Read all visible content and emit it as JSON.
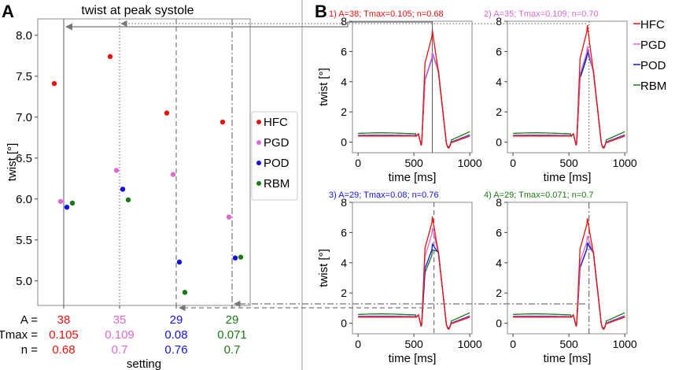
{
  "panel_labels": {
    "a": "A",
    "b": "B"
  },
  "colors": {
    "HFC": "#e8120f",
    "PGD": "#de69d4",
    "POD": "#1212e0",
    "RBM": "#1b7a14"
  },
  "chart_data": [
    {
      "id": "A",
      "type": "scatter",
      "title": "twist at peak systole",
      "xlabel": "setting",
      "ylabel": "twist [°]",
      "ylim": [
        4.7,
        8.2
      ],
      "yticks": [
        "5.0",
        "5.5",
        "6.0",
        "6.5",
        "7.0",
        "7.5",
        "8.0"
      ],
      "row_labels": [
        "A =",
        "Tmax =",
        "n ="
      ],
      "settings": [
        {
          "A": "38",
          "Tmax": "0.105",
          "n": "0.68",
          "line": "solid",
          "color": "#e8120f"
        },
        {
          "A": "35",
          "Tmax": "0.109",
          "n": "0.7",
          "line": "dotted",
          "color": "#de69d4"
        },
        {
          "A": "29",
          "Tmax": "0.08",
          "n": "0.76",
          "line": "dashed",
          "color": "#1212e0"
        },
        {
          "A": "29",
          "Tmax": "0.071",
          "n": "0.7",
          "line": "dashdot",
          "color": "#1b7a14"
        }
      ],
      "legend": [
        "HFC",
        "PGD",
        "POD",
        "RBM"
      ],
      "series": [
        {
          "name": "HFC",
          "values": [
            7.41,
            7.74,
            7.05,
            6.94
          ]
        },
        {
          "name": "PGD",
          "values": [
            5.97,
            6.35,
            6.3,
            5.78
          ]
        },
        {
          "name": "POD",
          "values": [
            5.9,
            6.12,
            5.23,
            5.28
          ]
        },
        {
          "name": "RBM",
          "values": [
            5.95,
            5.99,
            4.86,
            5.29
          ]
        }
      ]
    },
    {
      "id": "B",
      "type": "line",
      "xlabel": "time [ms]",
      "ylabel": "twist [°]",
      "xlim": [
        -50,
        1020
      ],
      "ylim": [
        -0.7,
        8
      ],
      "xticks": [
        "0",
        "500",
        "1000"
      ],
      "yticks": [
        "0",
        "2",
        "4",
        "6",
        "8"
      ],
      "legend": [
        "HFC",
        "PGD",
        "POD",
        "RBM"
      ],
      "subplots": [
        {
          "title": "1) A=38; Tmax=0.105; n=0.68",
          "title_color": "#e8120f",
          "marker_time": 665,
          "marker_line": "solid",
          "peaks": {
            "HFC": 7.4,
            "PGD": 5.97,
            "POD": 5.9,
            "RBM": 5.95
          }
        },
        {
          "title": "2) A=35; Tmax=0.109; n=0.70",
          "title_color": "#de69d4",
          "marker_time": 680,
          "marker_line": "dotted",
          "peaks": {
            "HFC": 7.74,
            "PGD": 6.35,
            "POD": 6.12,
            "RBM": 5.99
          }
        },
        {
          "title": "3) A=29; Tmax=0.08; n=0.76",
          "title_color": "#1212e0",
          "marker_time": 680,
          "marker_line": "dashed",
          "peaks": {
            "HFC": 7.05,
            "PGD": 6.3,
            "POD": 5.23,
            "RBM": 4.86
          }
        },
        {
          "title": "4) A=29; Tmax=0.071; n=0.7",
          "title_color": "#1b7a14",
          "marker_time": 680,
          "marker_line": "dashdot",
          "peaks": {
            "HFC": 6.94,
            "PGD": 5.78,
            "POD": 5.28,
            "RBM": 5.29
          }
        }
      ]
    }
  ]
}
